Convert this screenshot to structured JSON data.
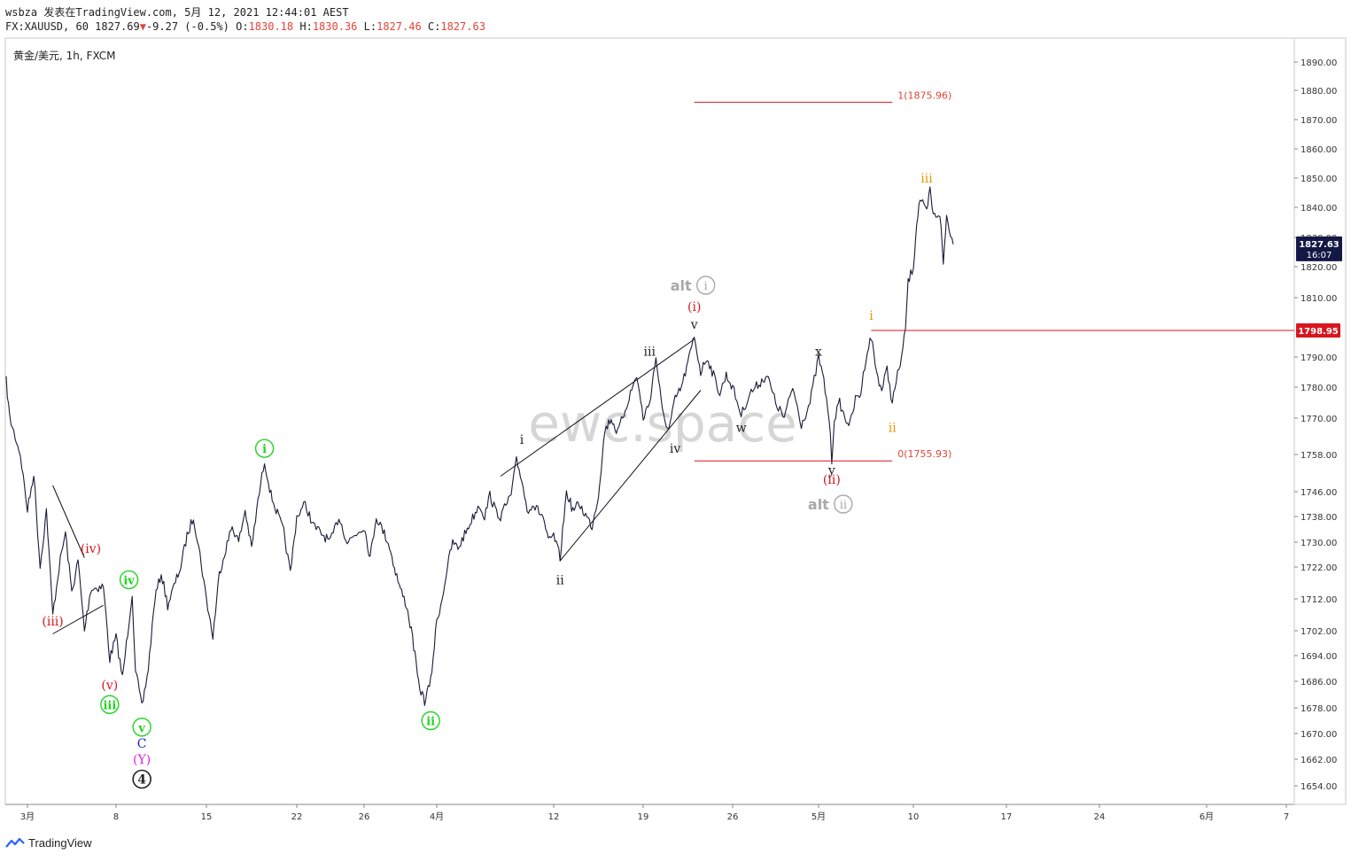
{
  "header": {
    "line1": "wsbza 发表在TradingView.com, 5月 12, 2021 12:44:01 AEST",
    "symbol": "FX:XAUUSD, 60 1827.69",
    "change_arrow": "▼",
    "change": "-9.27 (-0.5%)",
    "o_label": "O:",
    "o_val": "1830.18",
    "h_label": "H:",
    "h_val": "1830.36",
    "l_label": "L:",
    "l_val": "1827.46",
    "c_label": "C:",
    "c_val": "1827.63"
  },
  "instrument_label": "黄金/美元, 1h, FXCM",
  "watermark": "ewc.space",
  "brand": "TradingView",
  "price_tag": {
    "price": "1827.63",
    "countdown": "16:07"
  },
  "level_tag": "1798.95",
  "colors": {
    "price": "#1b1a3a",
    "accent_red": "#d8161e",
    "fib": "#e0453a",
    "green": "#22d322",
    "orange": "#e69a00",
    "grey": "#a8a8a8",
    "black": "#222222",
    "blue": "#1d22d8",
    "magenta": "#e020e0",
    "tag_bg": "#131845"
  },
  "chart_data": {
    "type": "line",
    "yaxis": {
      "ticks": [
        1654,
        1662,
        1670,
        1678,
        1686,
        1694,
        1702,
        1712,
        1722,
        1730,
        1738,
        1746,
        1758,
        1770,
        1780,
        1790,
        1810,
        1820,
        1830,
        1840,
        1850,
        1860,
        1870,
        1880,
        1890
      ],
      "tick_labels": [
        "1654.00",
        "1662.00",
        "1670.00",
        "1678.00",
        "1686.00",
        "1694.00",
        "1702.00",
        "1712.00",
        "1722.00",
        "1730.00",
        "1738.00",
        "1746.00",
        "1758.00",
        "1770.00",
        "1780.00",
        "1790.00",
        "1810.00",
        "1820.00",
        "1830.00",
        "1840.00",
        "1850.00",
        "1860.00",
        "1870.00",
        "1880.00",
        "1890.00"
      ]
    },
    "xaxis": {
      "tick_labels": [
        "3月",
        "8",
        "15",
        "22",
        "26",
        "4月",
        "12",
        "19",
        "26",
        "5月",
        "10",
        "17",
        "24",
        "6月",
        "7"
      ],
      "tick_dates": [
        "2021-03-01",
        "2021-03-08",
        "2021-03-15",
        "2021-03-22",
        "2021-03-26",
        "2021-04-01",
        "2021-04-12",
        "2021-04-19",
        "2021-04-26",
        "2021-05-01",
        "2021-05-10",
        "2021-05-17",
        "2021-05-24",
        "2021-06-01",
        "2021-06-07"
      ]
    },
    "series": [
      {
        "points": [
          [
            "2021-02-26",
            1782
          ],
          [
            "2021-02-26T12",
            1770
          ],
          [
            "2021-02-28",
            1758
          ],
          [
            "2021-03-01",
            1740
          ],
          [
            "2021-03-01T12",
            1752
          ],
          [
            "2021-03-02",
            1722
          ],
          [
            "2021-03-02T12",
            1740
          ],
          [
            "2021-03-03",
            1707
          ],
          [
            "2021-03-03T12",
            1722
          ],
          [
            "2021-03-04",
            1733
          ],
          [
            "2021-03-04T12",
            1714
          ],
          [
            "2021-03-05",
            1724
          ],
          [
            "2021-03-05T12",
            1702
          ],
          [
            "2021-03-06",
            1715
          ],
          [
            "2021-03-07",
            1716
          ],
          [
            "2021-03-07T12",
            1693
          ],
          [
            "2021-03-08",
            1700
          ],
          [
            "2021-03-08T12",
            1687
          ],
          [
            "2021-03-09",
            1705
          ],
          [
            "2021-03-09T06",
            1714
          ],
          [
            "2021-03-09T12",
            1690
          ],
          [
            "2021-03-10",
            1678
          ],
          [
            "2021-03-10T12",
            1690
          ],
          [
            "2021-03-11",
            1712
          ],
          [
            "2021-03-11T12",
            1720
          ],
          [
            "2021-03-12",
            1710
          ],
          [
            "2021-03-13",
            1722
          ],
          [
            "2021-03-13T12",
            1732
          ],
          [
            "2021-03-14",
            1738
          ],
          [
            "2021-03-14T12",
            1726
          ],
          [
            "2021-03-15",
            1712
          ],
          [
            "2021-03-15T12",
            1700
          ],
          [
            "2021-03-16",
            1720
          ],
          [
            "2021-03-16T12",
            1728
          ],
          [
            "2021-03-17",
            1735
          ],
          [
            "2021-03-17T12",
            1730
          ],
          [
            "2021-03-18",
            1740
          ],
          [
            "2021-03-18T12",
            1728
          ],
          [
            "2021-03-19",
            1743
          ],
          [
            "2021-03-19T12",
            1756
          ],
          [
            "2021-03-20",
            1745
          ],
          [
            "2021-03-21",
            1733
          ],
          [
            "2021-03-21T12",
            1720
          ],
          [
            "2021-03-22",
            1738
          ],
          [
            "2021-03-22T12",
            1742
          ],
          [
            "2021-03-23",
            1735
          ],
          [
            "2021-03-24",
            1730
          ],
          [
            "2021-03-24T12",
            1738
          ],
          [
            "2021-03-25",
            1730
          ],
          [
            "2021-03-26",
            1735
          ],
          [
            "2021-03-26T12",
            1725
          ],
          [
            "2021-03-27",
            1738
          ],
          [
            "2021-03-28",
            1730
          ],
          [
            "2021-03-28T12",
            1722
          ],
          [
            "2021-03-29",
            1715
          ],
          [
            "2021-03-29T12",
            1710
          ],
          [
            "2021-03-30",
            1700
          ],
          [
            "2021-03-30T12",
            1685
          ],
          [
            "2021-03-31",
            1680
          ],
          [
            "2021-03-31T12",
            1686
          ],
          [
            "2021-04-01",
            1705
          ],
          [
            "2021-04-01T12",
            1712
          ],
          [
            "2021-04-02",
            1722
          ],
          [
            "2021-04-02T12",
            1730
          ],
          [
            "2021-04-03",
            1728
          ],
          [
            "2021-04-04",
            1735
          ],
          [
            "2021-04-05",
            1742
          ],
          [
            "2021-04-05T12",
            1738
          ],
          [
            "2021-04-06",
            1745
          ],
          [
            "2021-04-06T12",
            1740
          ],
          [
            "2021-04-07",
            1738
          ],
          [
            "2021-04-08",
            1745
          ],
          [
            "2021-04-08T12",
            1756
          ],
          [
            "2021-04-09",
            1750
          ],
          [
            "2021-04-09T12",
            1740
          ],
          [
            "2021-04-10",
            1742
          ],
          [
            "2021-04-11",
            1738
          ],
          [
            "2021-04-11T12",
            1730
          ],
          [
            "2021-04-12",
            1732
          ],
          [
            "2021-04-12T12",
            1725
          ],
          [
            "2021-04-13",
            1746
          ],
          [
            "2021-04-13T12",
            1740
          ],
          [
            "2021-04-14",
            1742
          ],
          [
            "2021-04-15",
            1735
          ],
          [
            "2021-04-15T12",
            1745
          ],
          [
            "2021-04-16",
            1766
          ],
          [
            "2021-04-16T12",
            1770
          ],
          [
            "2021-04-17",
            1765
          ],
          [
            "2021-04-18",
            1778
          ],
          [
            "2021-04-18T12",
            1784
          ],
          [
            "2021-04-19",
            1770
          ],
          [
            "2021-04-19T12",
            1775
          ],
          [
            "2021-04-20",
            1790
          ],
          [
            "2021-04-20T12",
            1772
          ],
          [
            "2021-04-21",
            1766
          ],
          [
            "2021-04-21T12",
            1776
          ],
          [
            "2021-04-22",
            1780
          ],
          [
            "2021-04-22T12",
            1788
          ],
          [
            "2021-04-23",
            1797
          ],
          [
            "2021-04-23T12",
            1785
          ],
          [
            "2021-04-24",
            1790
          ],
          [
            "2021-04-25",
            1778
          ],
          [
            "2021-04-25T12",
            1784
          ],
          [
            "2021-04-26",
            1780
          ],
          [
            "2021-04-26T12",
            1771
          ],
          [
            "2021-04-27",
            1778
          ],
          [
            "2021-04-28",
            1784
          ],
          [
            "2021-04-28T12",
            1775
          ],
          [
            "2021-04-29",
            1770
          ],
          [
            "2021-04-29T12",
            1780
          ],
          [
            "2021-04-30",
            1768
          ],
          [
            "2021-04-30T12",
            1775
          ],
          [
            "2021-05-01",
            1790
          ],
          [
            "2021-05-01T12",
            1782
          ],
          [
            "2021-05-02",
            1770
          ],
          [
            "2021-05-02T06",
            1756
          ],
          [
            "2021-05-02T12",
            1770
          ],
          [
            "2021-05-03",
            1775
          ],
          [
            "2021-05-03T12",
            1770
          ],
          [
            "2021-05-04",
            1768
          ],
          [
            "2021-05-04T12",
            1776
          ],
          [
            "2021-05-05",
            1778
          ],
          [
            "2021-05-05T12",
            1790
          ],
          [
            "2021-05-06",
            1797
          ],
          [
            "2021-05-06T12",
            1785
          ],
          [
            "2021-05-07",
            1779
          ],
          [
            "2021-05-07T12",
            1786
          ],
          [
            "2021-05-08",
            1775
          ],
          [
            "2021-05-08T12",
            1784
          ],
          [
            "2021-05-09",
            1792
          ],
          [
            "2021-05-09T06",
            1800
          ],
          [
            "2021-05-09T12",
            1815
          ],
          [
            "2021-05-10",
            1820
          ],
          [
            "2021-05-10T06",
            1835
          ],
          [
            "2021-05-10T12",
            1843
          ],
          [
            "2021-05-11",
            1838
          ],
          [
            "2021-05-11T06",
            1846
          ],
          [
            "2021-05-11T12",
            1837
          ],
          [
            "2021-05-12",
            1838
          ],
          [
            "2021-05-12T06",
            1821
          ],
          [
            "2021-05-12T12",
            1837
          ],
          [
            "2021-05-13",
            1827.63
          ]
        ]
      }
    ],
    "hlines": [
      {
        "id": "fib-1",
        "y": 1875.96,
        "x0": "2021-04-23",
        "x1": "2021-05-08",
        "label": "1(1875.96)"
      },
      {
        "id": "fib-0",
        "y": 1755.93,
        "x0": "2021-04-23",
        "x1": "2021-05-08",
        "label": "0(1755.93)"
      },
      {
        "id": "level-1798",
        "y": 1798.95,
        "x0": "2021-05-06",
        "x1": "end",
        "label": ""
      }
    ],
    "trendlines": [
      {
        "id": "tl-1",
        "p1": [
          "2021-03-03",
          1748
        ],
        "p2": [
          "2021-03-05T12",
          1725
        ]
      },
      {
        "id": "tl-2",
        "p1": [
          "2021-03-03",
          1701
        ],
        "p2": [
          "2021-03-07",
          1710
        ]
      },
      {
        "id": "tl-3",
        "p1": [
          "2021-04-07",
          1751
        ],
        "p2": [
          "2021-04-23",
          1796
        ]
      },
      {
        "id": "tl-4",
        "p1": [
          "2021-04-12T12",
          1724
        ],
        "p2": [
          "2021-04-23T12",
          1779
        ]
      }
    ],
    "annotations": [
      {
        "text": "(iii)",
        "x": "2021-03-03",
        "y": 1705,
        "color": "accent_red",
        "style": "plain"
      },
      {
        "text": "(iv)",
        "x": "2021-03-06",
        "y": 1728,
        "color": "accent_red",
        "style": "plain"
      },
      {
        "text": "(v)",
        "x": "2021-03-07T12",
        "y": 1685,
        "color": "accent_red",
        "style": "plain"
      },
      {
        "text": "iii",
        "x": "2021-03-07T12",
        "y": 1679,
        "color": "green",
        "style": "circle"
      },
      {
        "text": "iv",
        "x": "2021-03-09",
        "y": 1718,
        "color": "green",
        "style": "circle"
      },
      {
        "text": "v",
        "x": "2021-03-10",
        "y": 1672,
        "color": "green",
        "style": "circle"
      },
      {
        "text": "C",
        "x": "2021-03-10",
        "y": 1667,
        "color": "blue",
        "style": "plain"
      },
      {
        "text": "(Y)",
        "x": "2021-03-10",
        "y": 1662,
        "color": "magenta",
        "style": "plain"
      },
      {
        "text": "4",
        "x": "2021-03-10",
        "y": 1656,
        "color": "black",
        "style": "circle"
      },
      {
        "text": "i",
        "x": "2021-03-19T12",
        "y": 1760,
        "color": "green",
        "style": "circle"
      },
      {
        "text": "ii",
        "x": "2021-03-31T12",
        "y": 1674,
        "color": "green",
        "style": "circle"
      },
      {
        "text": "i",
        "x": "2021-04-09",
        "y": 1763,
        "color": "black",
        "style": "plain"
      },
      {
        "text": "ii",
        "x": "2021-04-12T12",
        "y": 1718,
        "color": "black",
        "style": "plain"
      },
      {
        "text": "iii",
        "x": "2021-04-19T12",
        "y": 1792,
        "color": "black",
        "style": "plain"
      },
      {
        "text": "iv",
        "x": "2021-04-21T12",
        "y": 1760,
        "color": "black",
        "style": "plain"
      },
      {
        "text": "v",
        "x": "2021-04-23",
        "y": 1801,
        "color": "black",
        "style": "plain"
      },
      {
        "text": "(i)",
        "x": "2021-04-23",
        "y": 1807,
        "color": "accent_red",
        "style": "plain"
      },
      {
        "text": "i",
        "x": "2021-04-23",
        "y": 1814,
        "color": "grey",
        "style": "alt-circle",
        "prefix": "alt"
      },
      {
        "text": "w",
        "x": "2021-04-26T12",
        "y": 1767,
        "color": "black",
        "style": "plain"
      },
      {
        "text": "x",
        "x": "2021-05-01",
        "y": 1792,
        "color": "black",
        "style": "plain"
      },
      {
        "text": "y",
        "x": "2021-05-02T06",
        "y": 1753,
        "color": "black",
        "style": "plain"
      },
      {
        "text": "(ii)",
        "x": "2021-05-02T06",
        "y": 1750,
        "color": "accent_red",
        "style": "plain"
      },
      {
        "text": "ii",
        "x": "2021-05-02T06",
        "y": 1742,
        "color": "grey",
        "style": "alt-circle",
        "prefix": "alt"
      },
      {
        "text": "i",
        "x": "2021-05-06",
        "y": 1804,
        "color": "orange",
        "style": "plain"
      },
      {
        "text": "ii",
        "x": "2021-05-08",
        "y": 1767,
        "color": "orange",
        "style": "plain"
      },
      {
        "text": "iii",
        "x": "2021-05-11",
        "y": 1850,
        "color": "orange",
        "style": "plain"
      }
    ]
  }
}
